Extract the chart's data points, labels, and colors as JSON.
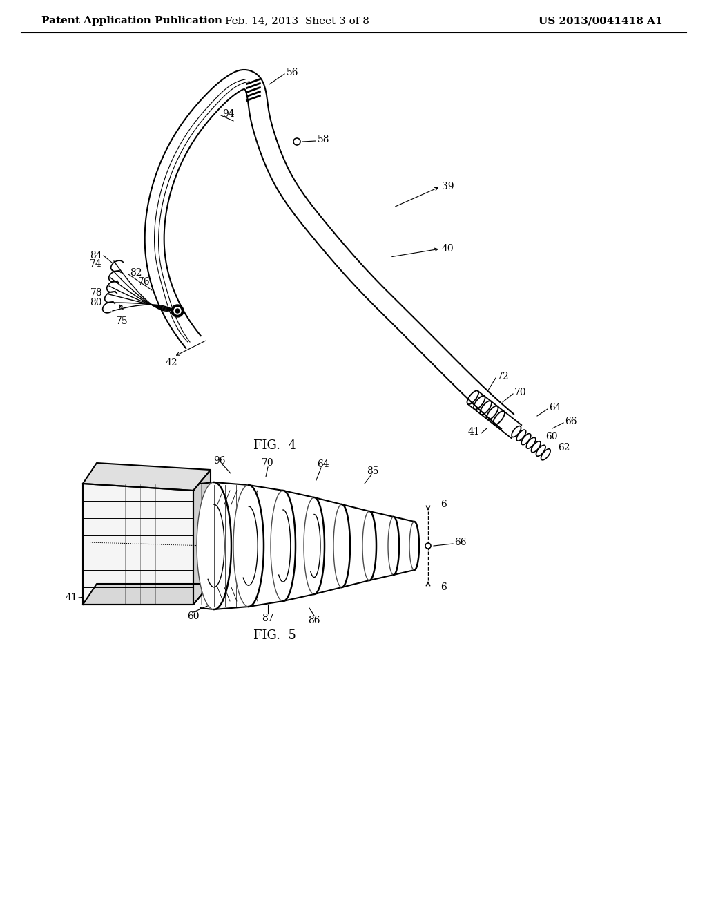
{
  "header_left": "Patent Application Publication",
  "header_center": "Feb. 14, 2013  Sheet 3 of 8",
  "header_right": "US 2013/0041418 A1",
  "fig4_label": "FIG.  4",
  "fig5_label": "FIG.  5",
  "bg_color": "#ffffff",
  "line_color": "#000000",
  "header_fontsize": 11,
  "annotation_fontsize": 10
}
